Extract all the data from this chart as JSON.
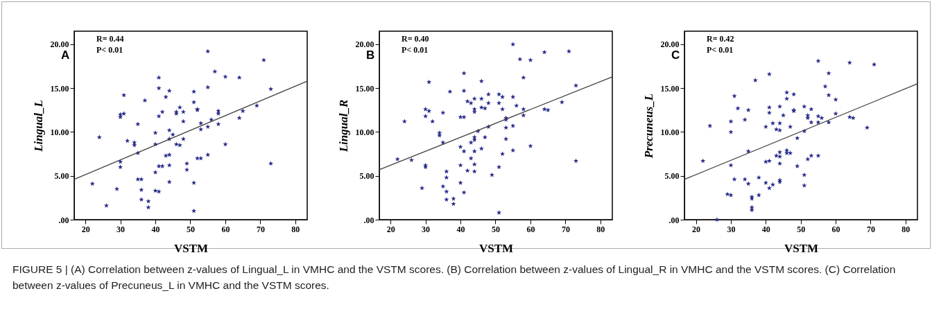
{
  "chart_data": [
    {
      "type": "scatter",
      "title": "A",
      "xlabel": "VSTM",
      "ylabel": "Lingual_L",
      "annotations": [
        "R= 0.44",
        "P< 0.01"
      ],
      "xlim": [
        16.8,
        83.4
      ],
      "ylim": [
        0,
        21.5
      ],
      "xticks": [
        20,
        30,
        40,
        50,
        60,
        70,
        80
      ],
      "yticks": [
        {
          "value": 0,
          "label": ".00"
        },
        {
          "value": 5,
          "label": "5.00"
        },
        {
          "value": 10,
          "label": "10.00"
        },
        {
          "value": 15,
          "label": "15.00"
        },
        {
          "value": 20,
          "label": "20.00"
        }
      ],
      "marker": "star",
      "series": [
        {
          "color": "#2b2f8c",
          "x": [
            55,
            71,
            57,
            41,
            60,
            64,
            31,
            41,
            44,
            51,
            55,
            73,
            37,
            43,
            51,
            47,
            42,
            41,
            46,
            46,
            48,
            52,
            52,
            58,
            58,
            65,
            69,
            30,
            30,
            31,
            64,
            56,
            48,
            53,
            53,
            55,
            58,
            35,
            44,
            40,
            45,
            44,
            48,
            24,
            32,
            34,
            34,
            40,
            46,
            47,
            60,
            35,
            43,
            44,
            52,
            53,
            55,
            49,
            49,
            30,
            30,
            41,
            42,
            44,
            73,
            40,
            35,
            36,
            44,
            51,
            22,
            29,
            36,
            40,
            41,
            36,
            38,
            38,
            26,
            51
          ],
          "values": [
            19.2,
            18.2,
            16.9,
            16.2,
            16.3,
            16.2,
            14.2,
            15.0,
            14.7,
            14.6,
            15.1,
            14.9,
            13.6,
            14.0,
            13.4,
            12.8,
            12.3,
            11.8,
            12.3,
            12.1,
            12.3,
            12.6,
            12.5,
            12.4,
            12.1,
            12.4,
            13.0,
            12.0,
            11.7,
            12.1,
            11.6,
            11.4,
            11.2,
            11.0,
            10.3,
            10.6,
            10.9,
            10.9,
            10.2,
            9.9,
            9.7,
            9.2,
            9.2,
            9.4,
            9.0,
            8.8,
            8.5,
            8.6,
            8.6,
            8.5,
            8.6,
            7.6,
            7.3,
            7.4,
            7.0,
            7.0,
            7.4,
            6.4,
            5.7,
            6.6,
            6.0,
            6.1,
            6.1,
            6.2,
            6.4,
            5.4,
            4.6,
            4.6,
            4.3,
            4.2,
            4.1,
            3.5,
            3.4,
            3.3,
            3.2,
            2.3,
            2.1,
            1.4,
            1.6,
            1.0
          ]
        },
        {
          "type": "line",
          "marker": "none",
          "color": "#404040",
          "x": [
            16.8,
            83.4
          ],
          "values": [
            4.6,
            15.8
          ]
        }
      ]
    },
    {
      "type": "scatter",
      "title": "B",
      "xlabel": "VSTM",
      "ylabel": "Lingual_R",
      "annotations": [
        "R= 0.40",
        "P< 0.01"
      ],
      "xlim": [
        16.8,
        83.4
      ],
      "ylim": [
        0,
        21.5
      ],
      "xticks": [
        20,
        30,
        40,
        50,
        60,
        70,
        80
      ],
      "yticks": [
        {
          "value": 0,
          "label": ".00"
        },
        {
          "value": 5,
          "label": "5.00"
        },
        {
          "value": 10,
          "label": "10.00"
        },
        {
          "value": 15,
          "label": "15.00"
        },
        {
          "value": 20,
          "label": "20.00"
        }
      ],
      "marker": "star",
      "series": [
        {
          "color": "#2b2f8c",
          "x": [
            55,
            64,
            71,
            57,
            60,
            58,
            41,
            31,
            46,
            73,
            37,
            41,
            51,
            48,
            52,
            55,
            42,
            43,
            44,
            46,
            48,
            51,
            56,
            69,
            46,
            47,
            44,
            44,
            52,
            58,
            58,
            64,
            65,
            30,
            31,
            30,
            35,
            40,
            41,
            24,
            32,
            53,
            53,
            48,
            53,
            55,
            34,
            34,
            45,
            44,
            44,
            47,
            53,
            35,
            43,
            40,
            41,
            44,
            46,
            60,
            55,
            52,
            43,
            22,
            26,
            73,
            30,
            30,
            40,
            44,
            42,
            44,
            51,
            49,
            36,
            36,
            35,
            36,
            29,
            40,
            41,
            36,
            38,
            38,
            51
          ],
          "values": [
            20.0,
            19.1,
            19.2,
            18.3,
            18.2,
            16.2,
            16.7,
            15.7,
            15.8,
            15.3,
            14.6,
            14.7,
            14.3,
            14.3,
            14.0,
            14.0,
            13.5,
            13.3,
            13.8,
            13.8,
            13.3,
            13.3,
            13.0,
            13.4,
            12.8,
            12.7,
            12.6,
            12.3,
            12.6,
            12.6,
            11.9,
            12.6,
            12.5,
            12.6,
            12.4,
            11.8,
            12.2,
            11.7,
            11.7,
            11.2,
            11.2,
            11.6,
            11.4,
            10.6,
            10.5,
            10.7,
            9.9,
            9.6,
            10.1,
            9.4,
            9.1,
            9.4,
            9.2,
            8.8,
            8.8,
            8.3,
            7.8,
            7.8,
            8.1,
            8.4,
            7.9,
            7.5,
            7.0,
            6.9,
            6.8,
            6.7,
            6.2,
            6.0,
            6.2,
            6.3,
            5.6,
            5.5,
            6.0,
            5.1,
            5.5,
            4.8,
            3.8,
            3.2,
            3.6,
            4.2,
            3.1,
            2.3,
            2.4,
            1.8,
            0.8
          ]
        },
        {
          "type": "line",
          "marker": "none",
          "color": "#404040",
          "x": [
            16.8,
            83.4
          ],
          "values": [
            5.7,
            16.3
          ]
        }
      ]
    },
    {
      "type": "scatter",
      "title": "C",
      "xlabel": "VSTM",
      "ylabel": "Precuneus_L",
      "annotations": [
        "R= 0.42",
        "P< 0.01",
        "FIGURE 5 | (A) Correlation between z-values of Lingual_L in VMHC and the VSTM scores. (B) Correlation between z-values of Lingual_R in VMHC and the VSTM scores. (C) Correlation between z-values of Precuneus_L in VMHC and the VSTM scores."
      ],
      "xlim": [
        16.7,
        83.4
      ],
      "ylim": [
        0,
        21.5
      ],
      "xticks": [
        20,
        30,
        40,
        50,
        60,
        70,
        80
      ],
      "yticks": [
        {
          "value": 0,
          "label": ".00"
        },
        {
          "value": 5,
          "label": "5.00"
        },
        {
          "value": 10,
          "label": "10.00"
        },
        {
          "value": 15,
          "label": "15.00"
        },
        {
          "value": 20,
          "label": "20.00"
        }
      ],
      "marker": "star",
      "series": [
        {
          "color": "#2b2f8c",
          "x": [
            55,
            64,
            71,
            58,
            41,
            37,
            57,
            31,
            46,
            46,
            48,
            58,
            60,
            32,
            35,
            41,
            41,
            44,
            48,
            48,
            51,
            53,
            52,
            52,
            45,
            60,
            55,
            56,
            64,
            65,
            30,
            24,
            34,
            42,
            44,
            53,
            55,
            58,
            40,
            43,
            44,
            47,
            51,
            69,
            30,
            49,
            35,
            46,
            46,
            47,
            44,
            43,
            44,
            52,
            53,
            55,
            22,
            40,
            41,
            44,
            30,
            49,
            51,
            51,
            31,
            34,
            35,
            38,
            40,
            42,
            41,
            44,
            44,
            29,
            30,
            38,
            36,
            36,
            36,
            36,
            26
          ],
          "values": [
            18.1,
            17.9,
            17.7,
            16.7,
            16.6,
            15.9,
            15.2,
            14.1,
            14.5,
            13.8,
            14.3,
            14.2,
            13.7,
            12.7,
            12.5,
            12.8,
            12.2,
            12.9,
            12.5,
            12.4,
            12.9,
            12.6,
            11.9,
            11.6,
            11.9,
            12.1,
            11.8,
            11.6,
            11.7,
            11.6,
            11.2,
            10.7,
            11.4,
            11.0,
            11.0,
            11.1,
            11.1,
            11.1,
            10.6,
            10.3,
            10.2,
            10.6,
            10.1,
            10.5,
            10.0,
            9.3,
            7.8,
            7.9,
            7.6,
            7.6,
            7.7,
            7.3,
            7.2,
            6.9,
            7.3,
            7.3,
            6.7,
            6.6,
            6.7,
            6.4,
            6.2,
            6.1,
            5.1,
            3.9,
            4.6,
            4.6,
            4.1,
            4.8,
            4.2,
            4.0,
            3.6,
            4.5,
            4.3,
            2.9,
            2.8,
            2.8,
            2.6,
            2.4,
            1.4,
            1.1,
            0.0
          ]
        },
        {
          "type": "line",
          "marker": "none",
          "color": "#404040",
          "x": [
            16.7,
            83.4
          ],
          "values": [
            4.6,
            15.5
          ]
        }
      ]
    }
  ]
}
